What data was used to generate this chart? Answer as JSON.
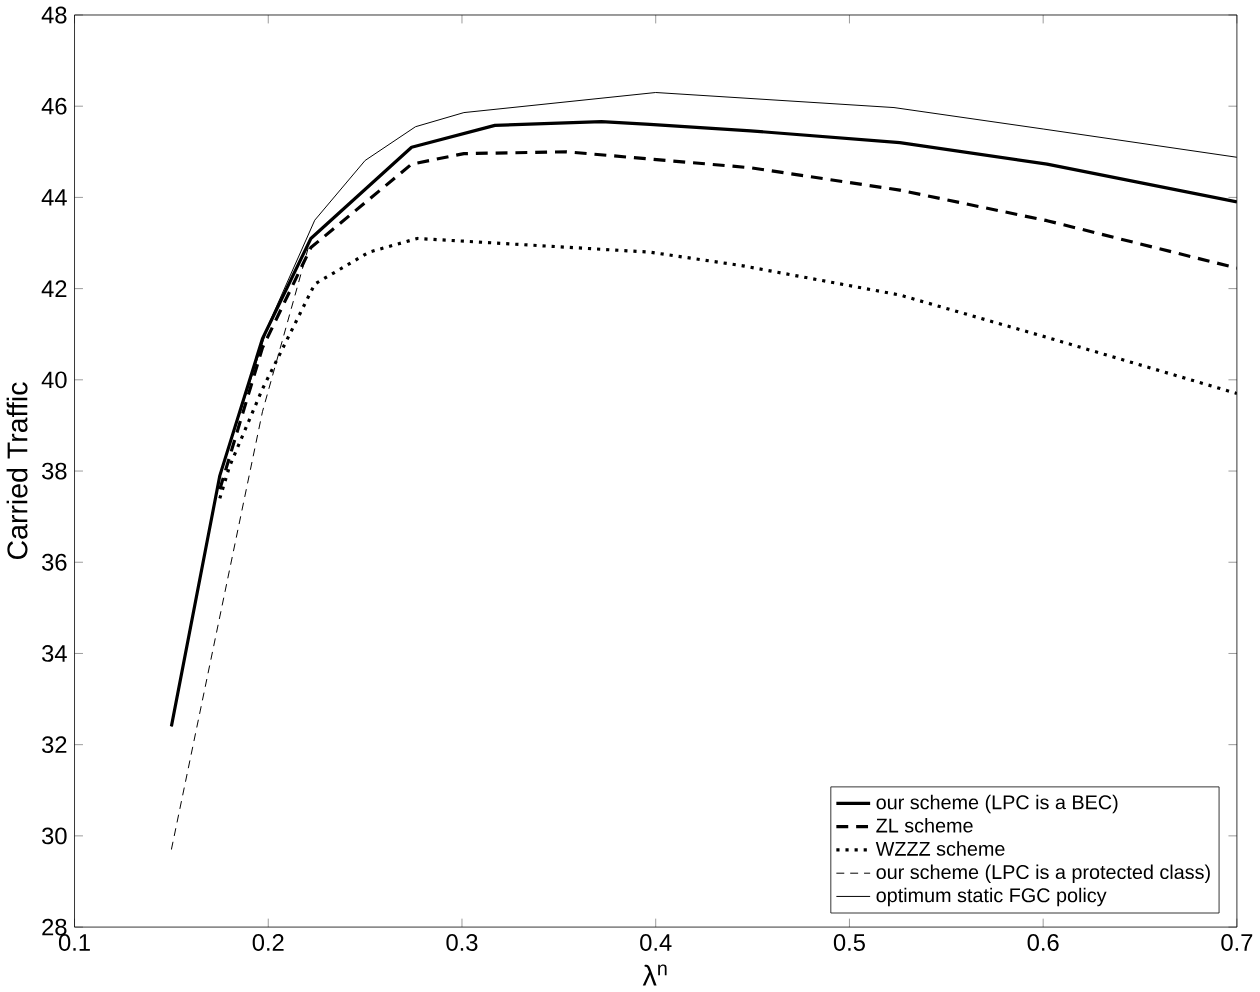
{
  "chart_data": {
    "type": "line",
    "xlabel": "λ$^{n}$",
    "ylabel": "Carried Traffic",
    "xlim": [
      0.1,
      0.7
    ],
    "ylim": [
      28,
      48
    ],
    "xticks": [
      0.1,
      0.2,
      0.3,
      0.4,
      0.5,
      0.6,
      0.7
    ],
    "yticks": [
      28,
      30,
      32,
      34,
      36,
      38,
      40,
      42,
      44,
      46,
      48
    ],
    "grid": false,
    "legend": "bottom right",
    "marker": "none",
    "series": [
      {
        "name": "our scheme (LPC is a BEC)",
        "color": "#000000",
        "line_style": "solid",
        "x": [
          0.15,
          0.175,
          0.197,
          0.222,
          0.274,
          0.317,
          0.372,
          0.397,
          0.449,
          0.526,
          0.602,
          0.7
        ],
        "values": [
          32.4,
          37.9,
          40.9,
          43.1,
          45.1,
          45.58,
          45.66,
          45.6,
          45.46,
          45.2,
          44.73,
          43.9
        ]
      },
      {
        "name": "ZL scheme",
        "color": "#000000",
        "line_style": "dashed",
        "x": [
          0.175,
          0.197,
          0.222,
          0.274,
          0.301,
          0.354,
          0.449,
          0.526,
          0.602,
          0.7
        ],
        "values": [
          37.6,
          40.7,
          42.9,
          44.73,
          44.96,
          45.0,
          44.65,
          44.16,
          43.49,
          42.45
        ]
      },
      {
        "name": "WZZZ scheme",
        "color": "#000000",
        "line_style": "dotted",
        "x": [
          0.175,
          0.18,
          0.197,
          0.224,
          0.252,
          0.277,
          0.397,
          0.445,
          0.526,
          0.602,
          0.7
        ],
        "values": [
          37.4,
          38.1,
          39.8,
          42.1,
          42.8,
          43.1,
          42.8,
          42.5,
          41.86,
          40.93,
          39.7
        ]
      },
      {
        "name": "our scheme (LPC is a protected class)",
        "color": "#000000",
        "line_style": "dashed",
        "x": [
          0.15,
          0.173,
          0.197,
          0.222,
          0.274,
          0.317,
          0.372,
          0.449,
          0.526,
          0.602,
          0.7
        ],
        "values": [
          29.7,
          34.4,
          39.3,
          43.1,
          45.1,
          45.58,
          45.66,
          45.46,
          45.2,
          44.73,
          43.9
        ]
      },
      {
        "name": "optimum static FGC policy",
        "color": "#000000",
        "line_style": "solid",
        "x": [
          0.15,
          0.175,
          0.2,
          0.224,
          0.25,
          0.276,
          0.301,
          0.4,
          0.523,
          0.6,
          0.7
        ],
        "values": [
          32.4,
          37.9,
          41.2,
          43.5,
          44.81,
          45.55,
          45.86,
          46.3,
          45.97,
          45.5,
          44.88
        ]
      }
    ]
  }
}
